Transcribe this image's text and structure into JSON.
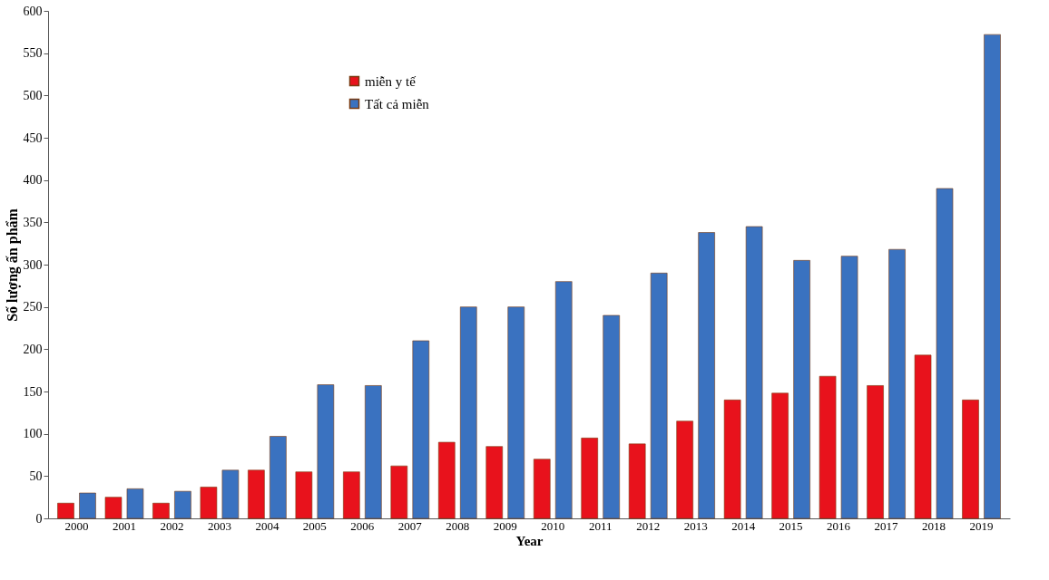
{
  "chart_data": {
    "type": "bar",
    "xlabel": "Year",
    "ylabel": "Số lượng ấn phẩm",
    "categories": [
      "2000",
      "2001",
      "2002",
      "2003",
      "2004",
      "2005",
      "2006",
      "2007",
      "2008",
      "2009",
      "2010",
      "2011",
      "2012",
      "2013",
      "2014",
      "2015",
      "2016",
      "2017",
      "2018",
      "2019"
    ],
    "series": [
      {
        "name": "miễn y tế",
        "color": "#e8121c",
        "values": [
          18,
          25,
          18,
          37,
          57,
          55,
          55,
          62,
          90,
          85,
          70,
          95,
          88,
          115,
          140,
          148,
          168,
          157,
          193,
          140
        ]
      },
      {
        "name": "Tất cả miễn",
        "color": "#3a72c0",
        "values": [
          30,
          35,
          32,
          57,
          97,
          158,
          157,
          210,
          250,
          250,
          280,
          240,
          290,
          338,
          345,
          305,
          310,
          318,
          390,
          572
        ]
      }
    ],
    "ylim": [
      0,
      600
    ],
    "yticks": [
      0,
      50,
      100,
      150,
      200,
      250,
      300,
      350,
      400,
      450,
      500,
      550,
      600
    ],
    "grid": false,
    "legend": "top left"
  }
}
